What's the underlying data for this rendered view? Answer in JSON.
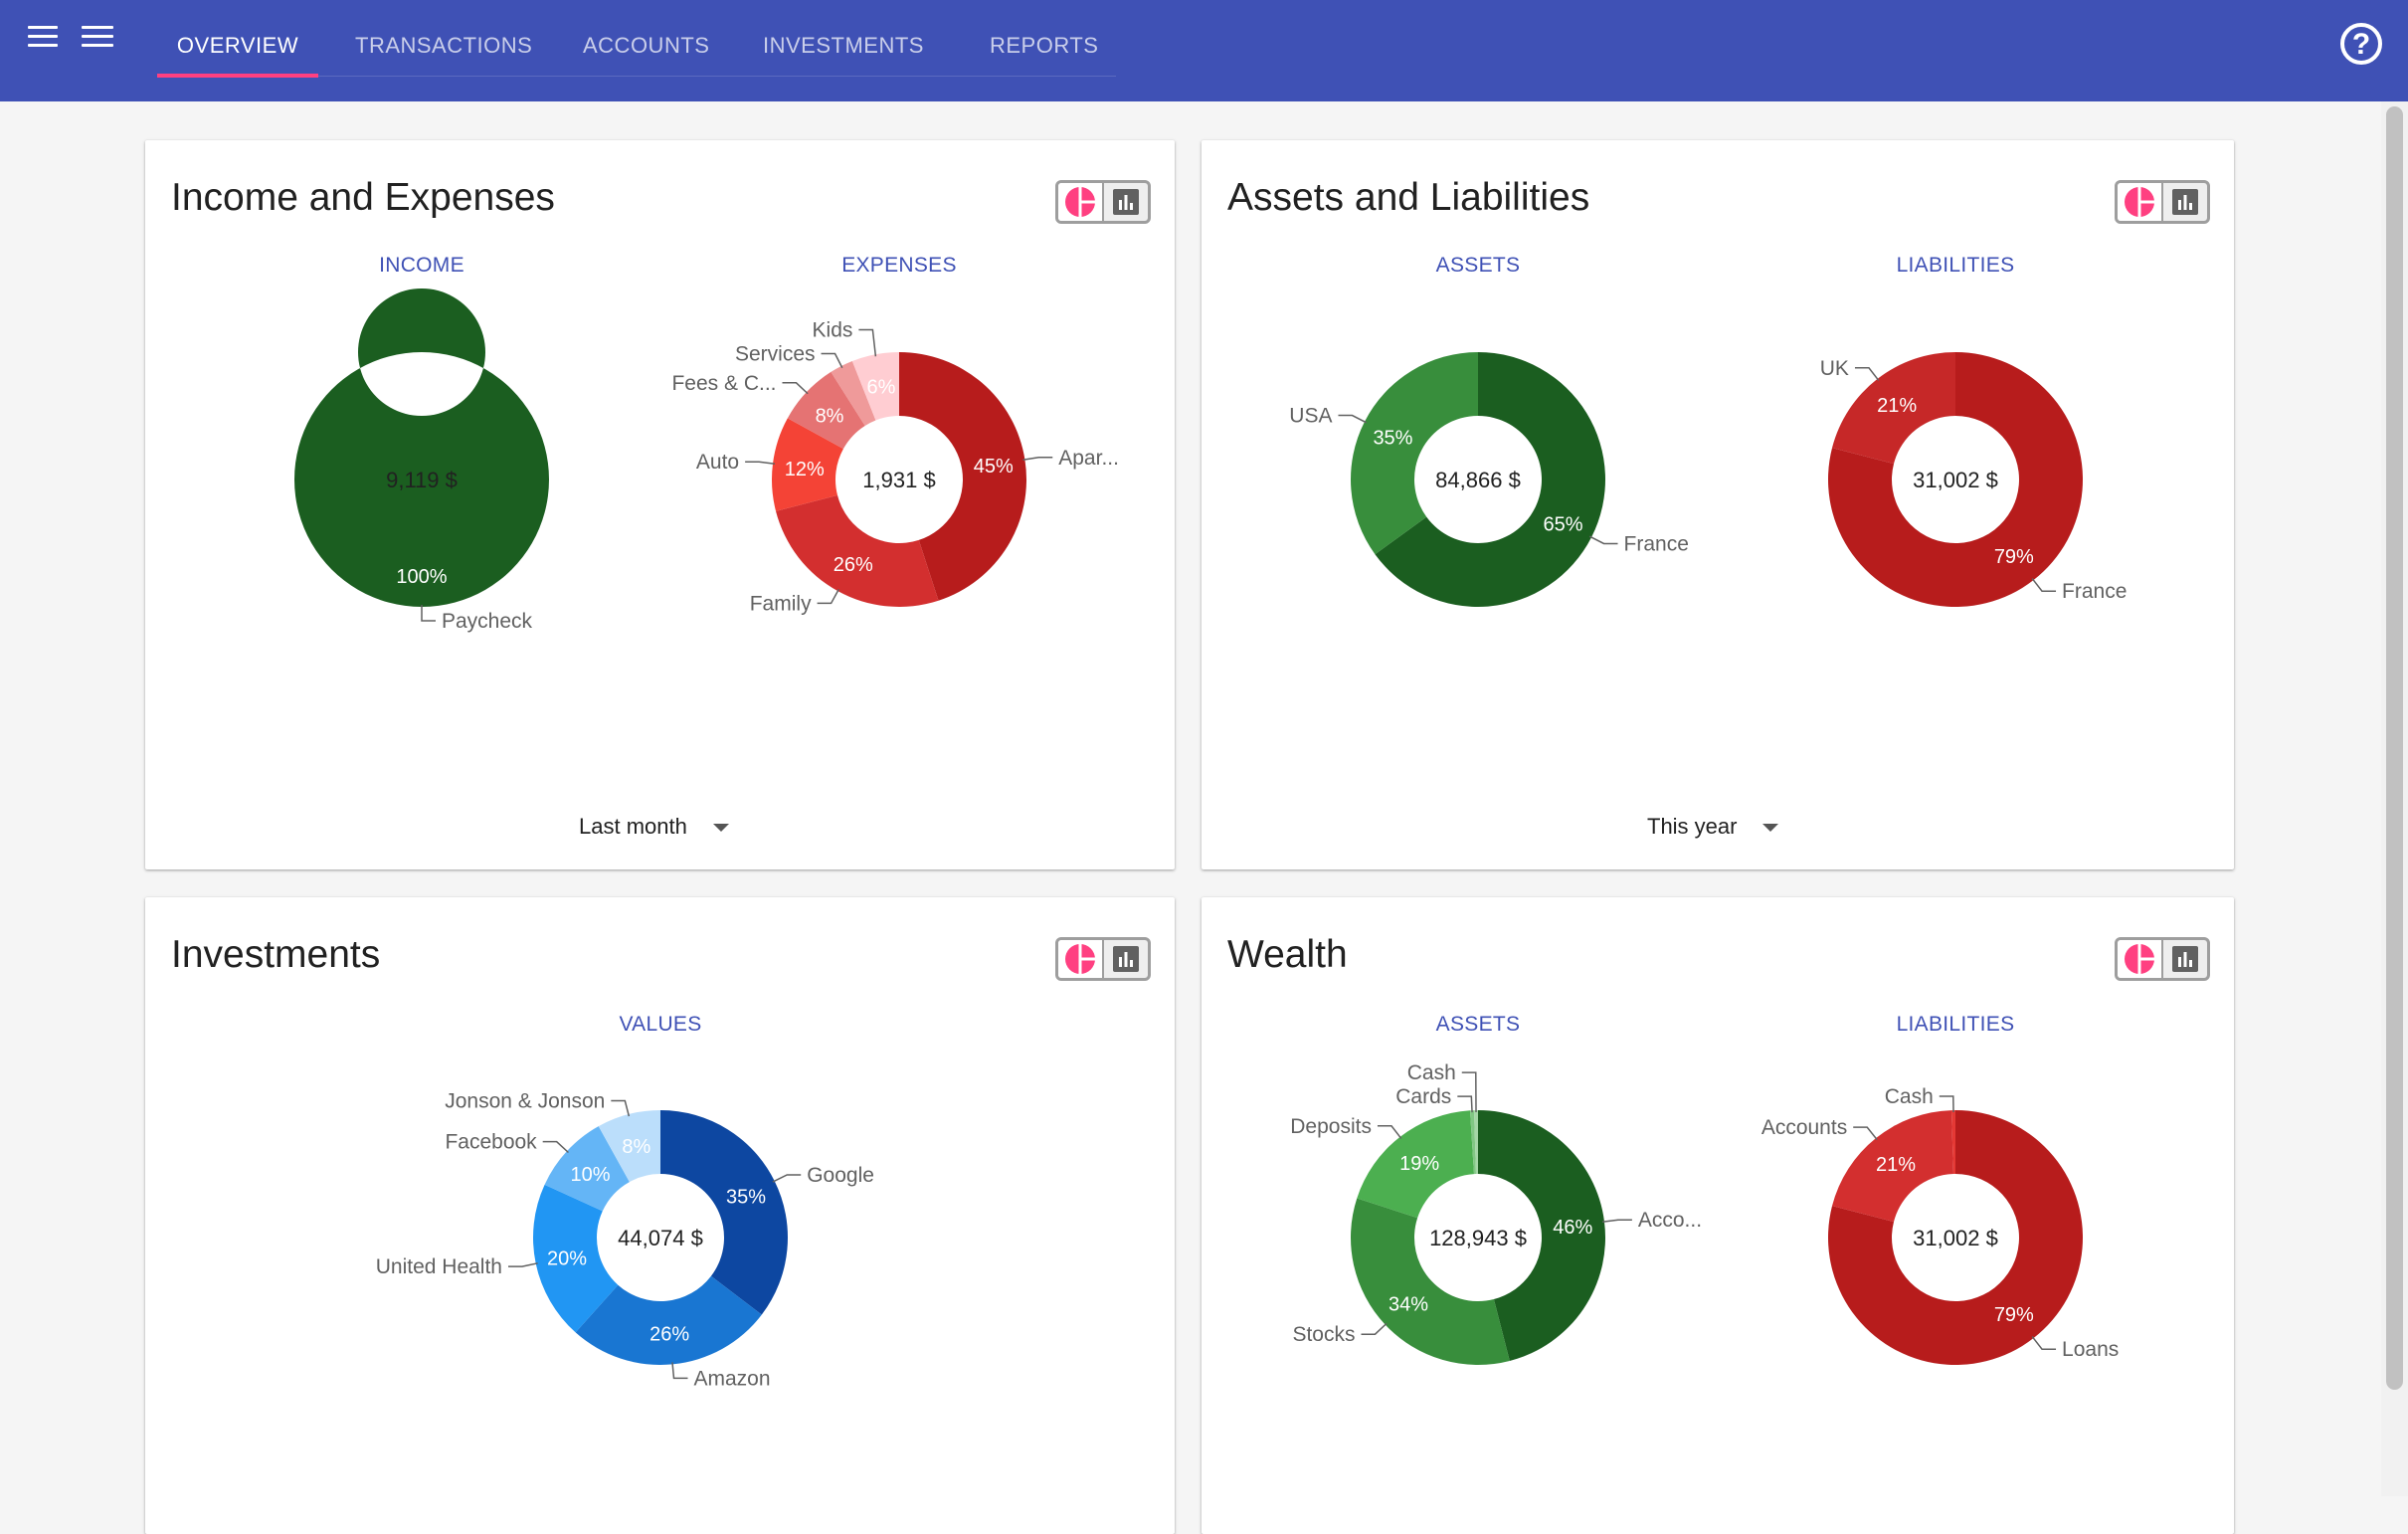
{
  "nav": {
    "tabs": [
      {
        "label": "OVERVIEW",
        "active": true
      },
      {
        "label": "TRANSACTIONS",
        "active": false
      },
      {
        "label": "ACCOUNTS",
        "active": false
      },
      {
        "label": "INVESTMENTS",
        "active": false
      },
      {
        "label": "REPORTS",
        "active": false
      }
    ],
    "help_icon": "help-circle-icon",
    "menu_icons": [
      "menu-icon",
      "menu-icon"
    ]
  },
  "toggle_icons": [
    "pie-chart-icon",
    "bar-chart-icon"
  ],
  "colors": {
    "accent": "#3f51b5",
    "indicator": "#ff4081"
  },
  "cards": {
    "income_expenses": {
      "title": "Income and Expenses",
      "period": "Last month",
      "income_label": "INCOME",
      "expenses_label": "EXPENSES"
    },
    "assets_liabilities": {
      "title": "Assets and Liabilities",
      "period": "This year",
      "assets_label": "ASSETS",
      "liabilities_label": "LIABILITIES"
    },
    "investments": {
      "title": "Investments",
      "values_label": "VALUES"
    },
    "wealth": {
      "title": "Wealth",
      "assets_label": "ASSETS",
      "liabilities_label": "LIABILITIES"
    }
  },
  "chart_data": [
    {
      "id": "income",
      "type": "pie",
      "center_label": "9,119 $",
      "slices": [
        {
          "label": "Paycheck",
          "value": 100,
          "pct_label": "100%",
          "color": "#1b5e20"
        }
      ]
    },
    {
      "id": "expenses",
      "type": "pie",
      "center_label": "1,931 $",
      "slices": [
        {
          "label": "Apar...",
          "value": 45,
          "pct_label": "45%",
          "color": "#b71c1c"
        },
        {
          "label": "Family",
          "value": 26,
          "pct_label": "26%",
          "color": "#d32f2f"
        },
        {
          "label": "Auto",
          "value": 12,
          "pct_label": "12%",
          "color": "#f44336"
        },
        {
          "label": "Fees & C...",
          "value": 8,
          "pct_label": "8%",
          "color": "#e57373"
        },
        {
          "label": "Services",
          "value": 3,
          "pct_label": "",
          "color": "#ef9a9a"
        },
        {
          "label": "Kids",
          "value": 6,
          "pct_label": "6%",
          "color": "#ffcdd2"
        }
      ]
    },
    {
      "id": "assets",
      "type": "pie",
      "center_label": "84,866 $",
      "slices": [
        {
          "label": "France",
          "value": 65,
          "pct_label": "65%",
          "color": "#1b5e20"
        },
        {
          "label": "USA",
          "value": 35,
          "pct_label": "35%",
          "color": "#388e3c"
        }
      ]
    },
    {
      "id": "liabilities",
      "type": "pie",
      "center_label": "31,002 $",
      "slices": [
        {
          "label": "France",
          "value": 79,
          "pct_label": "79%",
          "color": "#b71c1c"
        },
        {
          "label": "UK",
          "value": 21,
          "pct_label": "21%",
          "color": "#c62828"
        }
      ]
    },
    {
      "id": "investments",
      "type": "pie",
      "center_label": "44,074 $",
      "slices": [
        {
          "label": "Google",
          "value": 35,
          "pct_label": "35%",
          "color": "#0d47a1"
        },
        {
          "label": "Amazon",
          "value": 26,
          "pct_label": "26%",
          "color": "#1976d2"
        },
        {
          "label": "United Health",
          "value": 20,
          "pct_label": "20%",
          "color": "#2196f3"
        },
        {
          "label": "Facebook",
          "value": 10,
          "pct_label": "10%",
          "color": "#64b5f6"
        },
        {
          "label": "Jonson & Jonson",
          "value": 8,
          "pct_label": "8%",
          "color": "#bbdefb"
        }
      ]
    },
    {
      "id": "wealth_assets",
      "type": "pie",
      "center_label": "128,943 $",
      "slices": [
        {
          "label": "Acco...",
          "value": 46,
          "pct_label": "46%",
          "color": "#1b5e20"
        },
        {
          "label": "Stocks",
          "value": 34,
          "pct_label": "34%",
          "color": "#388e3c"
        },
        {
          "label": "Deposits",
          "value": 19,
          "pct_label": "19%",
          "color": "#4caf50"
        },
        {
          "label": "Cards",
          "value": 0.5,
          "pct_label": "",
          "color": "#81c784"
        },
        {
          "label": "Cash",
          "value": 0.5,
          "pct_label": "",
          "color": "#a5d6a7"
        }
      ]
    },
    {
      "id": "wealth_liabilities",
      "type": "pie",
      "center_label": "31,002 $",
      "slices": [
        {
          "label": "Loans",
          "value": 79,
          "pct_label": "79%",
          "color": "#b71c1c"
        },
        {
          "label": "Accounts",
          "value": 20.5,
          "pct_label": "21%",
          "color": "#d32f2f"
        },
        {
          "label": "Cash",
          "value": 0.5,
          "pct_label": "",
          "color": "#e53935"
        }
      ]
    }
  ]
}
